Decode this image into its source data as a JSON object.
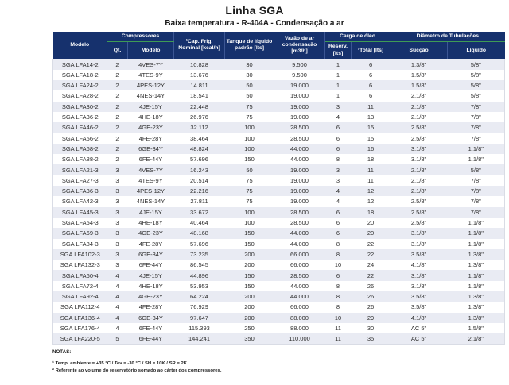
{
  "page": {
    "title": "Linha SGA",
    "subtitle": "Baixa temperatura - R-404A - Condensação a ar"
  },
  "table": {
    "header": {
      "modelo": "Modelo",
      "compressores": "Compressores",
      "qt": "Qt.",
      "comp_modelo": "Modelo",
      "cap_frig": "¹Cap. Frig. Nominal [kcal/h]",
      "tanque": "Tanque de líquido padrão [lts]",
      "vazao": "Vazão de ar condensação [m3/h]",
      "carga_oleo": "Carga de óleo",
      "reserv": "Reserv. [lts]",
      "total": "²Total [lts]",
      "diametro": "Diâmetro de Tubulações",
      "succao": "Sucção",
      "liquido": "Líquido"
    },
    "rows": [
      [
        "SGA LFA14-2",
        "2",
        "4VES-7Y",
        "10.828",
        "30",
        "9.500",
        "1",
        "6",
        "1.3/8\"",
        "5/8\""
      ],
      [
        "SGA LFA18-2",
        "2",
        "4TES-9Y",
        "13.676",
        "30",
        "9.500",
        "1",
        "6",
        "1.5/8\"",
        "5/8\""
      ],
      [
        "SGA LFA24-2",
        "2",
        "4PES-12Y",
        "14.811",
        "50",
        "19.000",
        "1",
        "6",
        "1.5/8\"",
        "5/8\""
      ],
      [
        "SGA LFA28-2",
        "2",
        "4NES-14Y",
        "18.541",
        "50",
        "19.000",
        "1",
        "6",
        "2.1/8\"",
        "5/8\""
      ],
      [
        "SGA LFA30-2",
        "2",
        "4JE-15Y",
        "22.448",
        "75",
        "19.000",
        "3",
        "11",
        "2.1/8\"",
        "7/8\""
      ],
      [
        "SGA LFA36-2",
        "2",
        "4HE-18Y",
        "26.976",
        "75",
        "19.000",
        "4",
        "13",
        "2.1/8\"",
        "7/8\""
      ],
      [
        "SGA LFA46-2",
        "2",
        "4GE-23Y",
        "32.112",
        "100",
        "28.500",
        "6",
        "15",
        "2.5/8\"",
        "7/8\""
      ],
      [
        "SGA LFA56-2",
        "2",
        "4FE-28Y",
        "38.464",
        "100",
        "28.500",
        "6",
        "15",
        "2.5/8\"",
        "7/8\""
      ],
      [
        "SGA LFA68-2",
        "2",
        "6GE-34Y",
        "48.824",
        "100",
        "44.000",
        "6",
        "16",
        "3.1/8\"",
        "1.1/8\""
      ],
      [
        "SGA LFA88-2",
        "2",
        "6FE-44Y",
        "57.696",
        "150",
        "44.000",
        "8",
        "18",
        "3.1/8\"",
        "1.1/8\""
      ],
      [
        "SGA LFA21-3",
        "3",
        "4VES-7Y",
        "16.243",
        "50",
        "19.000",
        "3",
        "11",
        "2.1/8\"",
        "5/8\""
      ],
      [
        "SGA LFA27-3",
        "3",
        "4TES-9Y",
        "20.514",
        "75",
        "19.000",
        "3",
        "11",
        "2.1/8\"",
        "7/8\""
      ],
      [
        "SGA LFA36-3",
        "3",
        "4PES-12Y",
        "22.216",
        "75",
        "19.000",
        "4",
        "12",
        "2.1/8\"",
        "7/8\""
      ],
      [
        "SGA LFA42-3",
        "3",
        "4NES-14Y",
        "27.811",
        "75",
        "19.000",
        "4",
        "12",
        "2.5/8\"",
        "7/8\""
      ],
      [
        "SGA LFA45-3",
        "3",
        "4JE-15Y",
        "33.672",
        "100",
        "28.500",
        "6",
        "18",
        "2.5/8\"",
        "7/8\""
      ],
      [
        "SGA LFA54-3",
        "3",
        "4HE-18Y",
        "40.464",
        "100",
        "28.500",
        "6",
        "20",
        "2.5/8\"",
        "1.1/8\""
      ],
      [
        "SGA LFA69-3",
        "3",
        "4GE-23Y",
        "48.168",
        "150",
        "44.000",
        "6",
        "20",
        "3.1/8\"",
        "1.1/8\""
      ],
      [
        "SGA LFA84-3",
        "3",
        "4FE-28Y",
        "57.696",
        "150",
        "44.000",
        "8",
        "22",
        "3.1/8\"",
        "1.1/8\""
      ],
      [
        "SGA LFA102-3",
        "3",
        "6GE-34Y",
        "73.235",
        "200",
        "66.000",
        "8",
        "22",
        "3.5/8\"",
        "1.3/8\""
      ],
      [
        "SGA LFA132-3",
        "3",
        "6FE-44Y",
        "86.545",
        "200",
        "66.000",
        "10",
        "24",
        "4.1/8\"",
        "1.3/8\""
      ],
      [
        "SGA LFA60-4",
        "4",
        "4JE-15Y",
        "44.896",
        "150",
        "28.500",
        "6",
        "22",
        "3.1/8\"",
        "1.1/8\""
      ],
      [
        "SGA LFA72-4",
        "4",
        "4HE-18Y",
        "53.953",
        "150",
        "44.000",
        "8",
        "26",
        "3.1/8\"",
        "1.1/8\""
      ],
      [
        "SGA LFA92-4",
        "4",
        "4GE-23Y",
        "64.224",
        "200",
        "44.000",
        "8",
        "26",
        "3.5/8\"",
        "1.3/8\""
      ],
      [
        "SGA LFA112-4",
        "4",
        "4FE-28Y",
        "76.929",
        "200",
        "66.000",
        "8",
        "26",
        "3.5/8\"",
        "1.3/8\""
      ],
      [
        "SGA LFA136-4",
        "4",
        "6GE-34Y",
        "97.647",
        "200",
        "88.000",
        "10",
        "29",
        "4.1/8\"",
        "1.3/8\""
      ],
      [
        "SGA LFA176-4",
        "4",
        "6FE-44Y",
        "115.393",
        "250",
        "88.000",
        "11",
        "30",
        "AC 5\"",
        "1.5/8\""
      ],
      [
        "SGA LFA220-5",
        "5",
        "6FE-44Y",
        "144.241",
        "350",
        "110.000",
        "11",
        "35",
        "AC 5\"",
        "2.1/8\""
      ]
    ]
  },
  "notes": {
    "heading": "NOTAS:",
    "note1": "¹ Temp. ambiente = +35 °C / Tev = -30 °C / SH = 10K / SR = 2K",
    "note2": "² Referente ao volume do reservatório somado ao cárter dos compressores."
  },
  "colors": {
    "header_bg": "#16316d",
    "header_text": "#ffffff",
    "group_underline": "#3f9b55",
    "row_stripe": "#e9ebf3",
    "body_text": "#2e2e2e"
  }
}
